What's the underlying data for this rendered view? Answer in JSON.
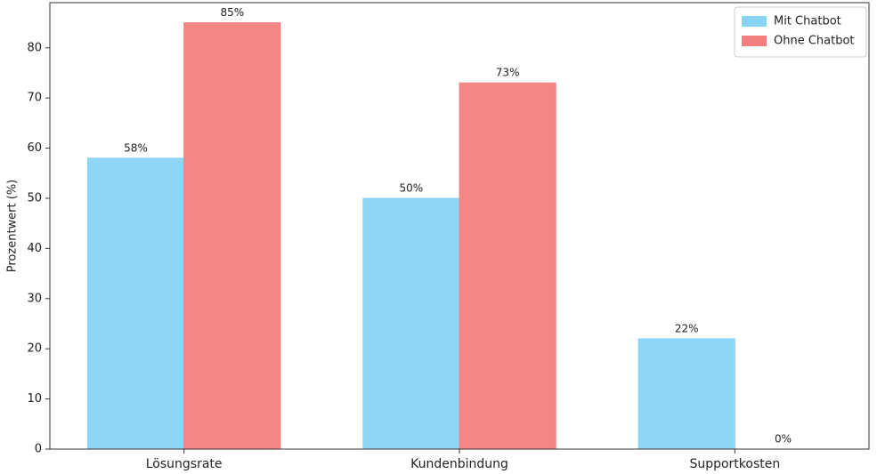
{
  "chart_data": {
    "type": "bar",
    "y_label": "Prozentwert (%)",
    "categories": [
      "Lösungsrate",
      "Kundenbindung",
      "Supportkosten"
    ],
    "series": [
      {
        "name": "Mit Chatbot",
        "color": "#87d4f5",
        "values": [
          58,
          50,
          22
        ],
        "value_labels": [
          "58%",
          "50%",
          "22%"
        ]
      },
      {
        "name": "Ohne Chatbot",
        "color": "#f47f80",
        "values": [
          85,
          73,
          0
        ],
        "value_labels": [
          "85%",
          "73%",
          "0%"
        ]
      }
    ],
    "ylim": [
      0,
      89
    ],
    "yticks": [
      0,
      10,
      20,
      30,
      40,
      50,
      60,
      70,
      80
    ],
    "grid": false,
    "legend": "upper right"
  }
}
